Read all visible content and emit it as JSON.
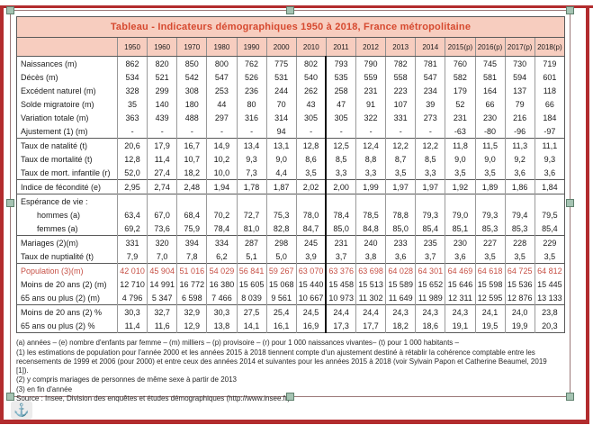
{
  "colors": {
    "frame-red": "#b22c2e",
    "sel-border": "#9b7878",
    "handle-fill": "#a5c3b2",
    "handle-border": "#5f806d",
    "accent-bg": "#f7cdbf",
    "title-red": "#d6492f",
    "pop-red": "#c65045"
  },
  "anchor_glyph": "⚓",
  "table": {
    "title": "Tableau - Indicateurs démographiques 1950 à 2018, France métropolitaine",
    "years": [
      "1950",
      "1960",
      "1970",
      "1980",
      "1990",
      "2000",
      "2010",
      "2011",
      "2012",
      "2013",
      "2014",
      "2015(p)",
      "2016(p)",
      "2017(p)",
      "2018(p)"
    ],
    "thick_divider_before_col": 7,
    "sections": [
      {
        "rows": [
          {
            "label": "Naissances (m)",
            "values": [
              "862",
              "820",
              "850",
              "800",
              "762",
              "775",
              "802",
              "793",
              "790",
              "782",
              "781",
              "760",
              "745",
              "730",
              "719"
            ]
          },
          {
            "label": "Décès (m)",
            "values": [
              "534",
              "521",
              "542",
              "547",
              "526",
              "531",
              "540",
              "535",
              "559",
              "558",
              "547",
              "582",
              "581",
              "594",
              "601"
            ]
          },
          {
            "label": "Excédent naturel (m)",
            "values": [
              "328",
              "299",
              "308",
              "253",
              "236",
              "244",
              "262",
              "258",
              "231",
              "223",
              "234",
              "179",
              "164",
              "137",
              "118"
            ]
          },
          {
            "label": "Solde migratoire (m)",
            "values": [
              "35",
              "140",
              "180",
              "44",
              "80",
              "70",
              "43",
              "47",
              "91",
              "107",
              "39",
              "52",
              "66",
              "79",
              "66"
            ]
          },
          {
            "label": "Variation totale (m)",
            "values": [
              "363",
              "439",
              "488",
              "297",
              "316",
              "314",
              "305",
              "305",
              "322",
              "331",
              "273",
              "231",
              "230",
              "216",
              "184"
            ]
          },
          {
            "label": "Ajustement (1) (m)",
            "values": [
              "-",
              "-",
              "-",
              "-",
              "-",
              "94",
              "-",
              "-",
              "-",
              "-",
              "-",
              "-63",
              "-80",
              "-96",
              "-97"
            ]
          }
        ]
      },
      {
        "rows": [
          {
            "label": "Taux de natalité (t)",
            "values": [
              "20,6",
              "17,9",
              "16,7",
              "14,9",
              "13,4",
              "13,1",
              "12,8",
              "12,5",
              "12,4",
              "12,2",
              "12,2",
              "11,8",
              "11,5",
              "11,3",
              "11,1"
            ]
          },
          {
            "label": "Taux de mortalité (t)",
            "values": [
              "12,8",
              "11,4",
              "10,7",
              "10,2",
              "9,3",
              "9,0",
              "8,6",
              "8,5",
              "8,8",
              "8,7",
              "8,5",
              "9,0",
              "9,0",
              "9,2",
              "9,3"
            ]
          },
          {
            "label": "Taux de mort. infantile (r)",
            "values": [
              "52,0",
              "27,4",
              "18,2",
              "10,0",
              "7,3",
              "4,4",
              "3,5",
              "3,3",
              "3,3",
              "3,5",
              "3,3",
              "3,5",
              "3,5",
              "3,6",
              "3,6"
            ]
          }
        ]
      },
      {
        "rows": [
          {
            "label": "Indice de fécondité (e)",
            "values": [
              "2,95",
              "2,74",
              "2,48",
              "1,94",
              "1,78",
              "1,87",
              "2,02",
              "2,00",
              "1,99",
              "1,97",
              "1,97",
              "1,92",
              "1,89",
              "1,86",
              "1,84"
            ]
          }
        ]
      },
      {
        "rows": [
          {
            "label": "Espérance de vie :",
            "values": [
              "",
              "",
              "",
              "",
              "",
              "",
              "",
              "",
              "",
              "",
              "",
              "",
              "",
              "",
              ""
            ]
          },
          {
            "label": "hommes (a)",
            "indent": true,
            "values": [
              "63,4",
              "67,0",
              "68,4",
              "70,2",
              "72,7",
              "75,3",
              "78,0",
              "78,4",
              "78,5",
              "78,8",
              "79,3",
              "79,0",
              "79,3",
              "79,4",
              "79,5"
            ]
          },
          {
            "label": "femmes (a)",
            "indent": true,
            "values": [
              "69,2",
              "73,6",
              "75,9",
              "78,4",
              "81,0",
              "82,8",
              "84,7",
              "85,0",
              "84,8",
              "85,0",
              "85,4",
              "85,1",
              "85,3",
              "85,3",
              "85,4"
            ]
          }
        ]
      },
      {
        "rows": [
          {
            "label": "Mariages (2)(m)",
            "values": [
              "331",
              "320",
              "394",
              "334",
              "287",
              "298",
              "245",
              "231",
              "240",
              "233",
              "235",
              "230",
              "227",
              "228",
              "229"
            ]
          },
          {
            "label": "Taux de nuptialité (t)",
            "values": [
              "7,9",
              "7,0",
              "7,8",
              "6,2",
              "5,1",
              "5,0",
              "3,9",
              "3,7",
              "3,8",
              "3,6",
              "3,7",
              "3,6",
              "3,5",
              "3,5",
              "3,5"
            ]
          }
        ]
      },
      {
        "rows": [
          {
            "label": "Population (3)(m)",
            "red": true,
            "values": [
              "42 010",
              "45 904",
              "51 016",
              "54 029",
              "56 841",
              "59 267",
              "63 070",
              "63 376",
              "63 698",
              "64 028",
              "64 301",
              "64 469",
              "64 618",
              "64 725",
              "64 812"
            ]
          },
          {
            "label": "Moins de 20 ans (2) (m)",
            "values": [
              "12 710",
              "14 991",
              "16 772",
              "16 380",
              "15 605",
              "15 068",
              "15 440",
              "15 458",
              "15 513",
              "15 589",
              "15 652",
              "15 646",
              "15 598",
              "15 536",
              "15 445"
            ]
          },
          {
            "label": "65 ans ou plus (2) (m)",
            "values": [
              "4 796",
              "5 347",
              "6 598",
              "7 466",
              "8 039",
              "9 561",
              "10 667",
              "10 973",
              "11 302",
              "11 649",
              "11 989",
              "12 311",
              "12 595",
              "12 876",
              "13 133"
            ]
          }
        ]
      },
      {
        "rows": [
          {
            "label": "Moins de 20 ans (2) %",
            "values": [
              "30,3",
              "32,7",
              "32,9",
              "30,3",
              "27,5",
              "25,4",
              "24,5",
              "24,4",
              "24,4",
              "24,3",
              "24,3",
              "24,3",
              "24,1",
              "24,0",
              "23,8"
            ]
          },
          {
            "label": "65 ans ou plus (2) %",
            "values": [
              "11,4",
              "11,6",
              "12,9",
              "13,8",
              "14,1",
              "16,1",
              "16,9",
              "17,3",
              "17,7",
              "18,2",
              "18,6",
              "19,1",
              "19,5",
              "19,9",
              "20,3"
            ]
          }
        ]
      }
    ]
  },
  "footnotes": [
    "(a) années – (e) nombre d'enfants par femme – (m) milliers – (p) provisoire – (r) pour 1 000 naissances vivantes– (t) pour 1 000 habitants –",
    "(1) les estimations de population pour l'année 2000 et les années 2015 à 2018 tiennent compte d'un ajustement destiné à rétablir la cohérence comptable entre les recensements de 1999 et 2006 (pour 2000) et entre ceux des années 2014 et suivantes pour les années 2015 à 2018 (voir Sylvain Papon et Catherine Beaumel, 2019 [1]).",
    "(2) y compris mariages de personnes de même sexe à partir de 2013",
    "(3) en fin d'année"
  ],
  "source": "Source : Insee, Division des enquêtes et études démographiques (http://www.insee.fr)"
}
